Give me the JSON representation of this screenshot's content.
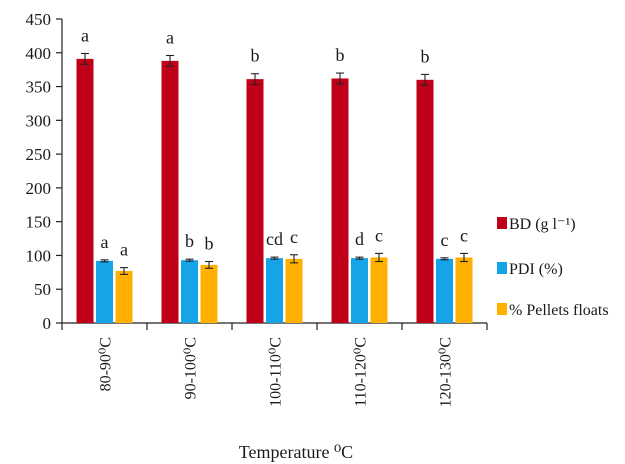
{
  "chart_data": {
    "type": "bar",
    "xlabel": "Temperature ⁰C",
    "ylabel": "",
    "ylim": [
      0,
      450
    ],
    "yticks": [
      0,
      50,
      100,
      150,
      200,
      250,
      300,
      350,
      400,
      450
    ],
    "grid": false,
    "legend_position": "right",
    "categories": [
      "80-90⁰C",
      "90-100⁰C",
      "100-110⁰C",
      "110-120⁰C",
      "120-130⁰C"
    ],
    "series": [
      {
        "name": "BD (g l⁻¹)",
        "color": "#c00018",
        "values": [
          391,
          388,
          361,
          362,
          360
        ],
        "errors": [
          8,
          8,
          8,
          8,
          8
        ],
        "letters": [
          "a",
          "a",
          "b",
          "b",
          "b"
        ]
      },
      {
        "name": "PDI (%)",
        "color": "#16a4e8",
        "values": [
          92,
          93,
          96,
          96,
          95
        ],
        "errors": [
          1.5,
          1.5,
          1.5,
          1.5,
          1.5
        ],
        "letters": [
          "a",
          "b",
          "cd",
          "d",
          "c"
        ]
      },
      {
        "name": "% Pellets floats",
        "color": "#ffb000",
        "values": [
          77,
          86,
          95,
          97,
          97
        ],
        "errors": [
          5,
          5,
          6,
          6,
          6
        ],
        "letters": [
          "a",
          "b",
          "c",
          "c",
          "c"
        ]
      }
    ]
  }
}
